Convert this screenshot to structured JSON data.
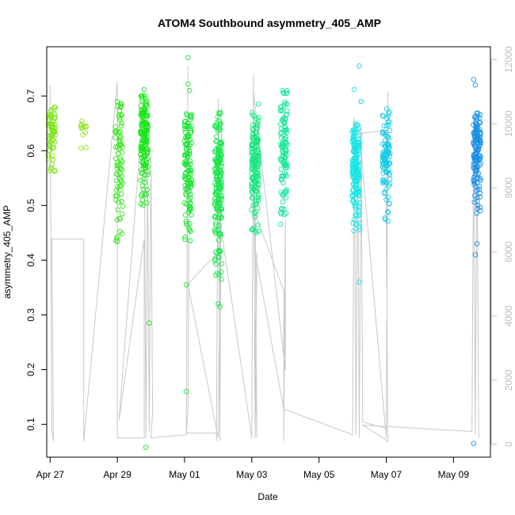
{
  "chart_data": {
    "type": "scatter",
    "title": "ATOM4 Southbound asymmetry_405_AMP",
    "xlabel": "Date",
    "ylabel": "asymmetry_405_AMP",
    "x_ticks": [
      "Apr 27",
      "Apr 29",
      "May 01",
      "May 03",
      "May 05",
      "May 07",
      "May 09"
    ],
    "y_ticks": [
      "0.1",
      "0.2",
      "0.3",
      "0.4",
      "0.5",
      "0.6",
      "0.7"
    ],
    "y_right_ticks": [
      "0",
      "2000",
      "4000",
      "6000",
      "8000",
      "10000",
      "12000"
    ],
    "xlim": [
      -0.1,
      13.1
    ],
    "ylim": [
      0.04,
      0.79
    ],
    "y_right_lim": [
      -400,
      12400
    ],
    "grid": false,
    "clusters": [
      {
        "x": 0.05,
        "y_range": [
          0.56,
          0.68
        ],
        "color": "#7FE61A",
        "n": 70
      },
      {
        "x": 1.0,
        "y_range": [
          0.605,
          0.66
        ],
        "color": "#8FE61A",
        "n": 12
      },
      {
        "x": 2.05,
        "y_range": [
          0.42,
          0.69
        ],
        "color": "#33E61A",
        "n": 80
      },
      {
        "x": 2.8,
        "y_range": [
          0.5,
          0.7
        ],
        "color": "#1AE61A",
        "n": 160
      },
      {
        "x": 4.1,
        "y_range": [
          0.43,
          0.67
        ],
        "color": "#1AE633",
        "n": 120
      },
      {
        "x": 5.0,
        "y_range": [
          0.37,
          0.67
        ],
        "color": "#1AE64C",
        "n": 180
      },
      {
        "x": 6.1,
        "y_range": [
          0.45,
          0.67
        ],
        "color": "#1AE680",
        "n": 160
      },
      {
        "x": 6.95,
        "y_range": [
          0.46,
          0.71
        ],
        "color": "#1AE69A",
        "n": 110
      },
      {
        "x": 9.1,
        "y_range": [
          0.45,
          0.65
        ],
        "color": "#1AE6E6",
        "n": 170
      },
      {
        "x": 10.0,
        "y_range": [
          0.47,
          0.68
        ],
        "color": "#1ACCE6",
        "n": 110
      },
      {
        "x": 12.7,
        "y_range": [
          0.48,
          0.67
        ],
        "color": "#1A8FE6",
        "n": 140
      }
    ],
    "outliers": [
      {
        "x": 2.85,
        "y": 0.058,
        "color": "#1AE61A"
      },
      {
        "x": 2.95,
        "y": 0.285,
        "color": "#1AE61A"
      },
      {
        "x": 2.8,
        "y": 0.712,
        "color": "#1AE61A"
      },
      {
        "x": 4.05,
        "y": 0.16,
        "color": "#1AE633"
      },
      {
        "x": 4.05,
        "y": 0.355,
        "color": "#1AE633"
      },
      {
        "x": 4.1,
        "y": 0.77,
        "color": "#1AE633"
      },
      {
        "x": 4.1,
        "y": 0.722,
        "color": "#1AE633"
      },
      {
        "x": 4.15,
        "y": 0.71,
        "color": "#1AE633"
      },
      {
        "x": 5.0,
        "y": 0.32,
        "color": "#1AE64C"
      },
      {
        "x": 5.05,
        "y": 0.315,
        "color": "#1AE64C"
      },
      {
        "x": 5.1,
        "y": 0.365,
        "color": "#1AE64C"
      },
      {
        "x": 6.2,
        "y": 0.685,
        "color": "#1AE680"
      },
      {
        "x": 6.95,
        "y": 0.705,
        "color": "#1AE69A"
      },
      {
        "x": 9.05,
        "y": 0.712,
        "color": "#1AE6E6"
      },
      {
        "x": 9.2,
        "y": 0.36,
        "color": "#1AE6E6"
      },
      {
        "x": 9.2,
        "y": 0.755,
        "color": "#1ACCE6"
      },
      {
        "x": 9.25,
        "y": 0.69,
        "color": "#1ACCE6"
      },
      {
        "x": 12.6,
        "y": 0.065,
        "color": "#1A8FE6"
      },
      {
        "x": 12.65,
        "y": 0.41,
        "color": "#1A8FE6"
      },
      {
        "x": 12.7,
        "y": 0.43,
        "color": "#1A8FE6"
      },
      {
        "x": 12.6,
        "y": 0.73,
        "color": "#1A8FE6"
      },
      {
        "x": 12.65,
        "y": 0.72,
        "color": "#1A8FE6"
      }
    ],
    "count_line": [
      [
        0.0,
        11200
      ],
      [
        0.05,
        400
      ],
      [
        0.1,
        100
      ],
      [
        0.05,
        6400
      ],
      [
        1.0,
        6400
      ],
      [
        1.0,
        100
      ],
      [
        2.0,
        11300
      ],
      [
        2.0,
        200
      ],
      [
        2.8,
        200
      ],
      [
        2.8,
        6400
      ],
      [
        2.05,
        750
      ],
      [
        2.8,
        11000
      ],
      [
        2.85,
        200
      ],
      [
        2.9,
        8500
      ],
      [
        2.95,
        400
      ],
      [
        3.0,
        9000
      ],
      [
        3.05,
        1000
      ],
      [
        3.0,
        200
      ],
      [
        4.05,
        300
      ],
      [
        4.1,
        11800
      ],
      [
        4.05,
        300
      ],
      [
        4.1,
        10000
      ],
      [
        4.15,
        9000
      ],
      [
        4.1,
        1000
      ],
      [
        4.05,
        350
      ],
      [
        4.95,
        350
      ],
      [
        4.95,
        100
      ],
      [
        5.0,
        10800
      ],
      [
        5.05,
        100
      ],
      [
        5.1,
        10500
      ],
      [
        5.0,
        200
      ],
      [
        4.1,
        5000
      ],
      [
        5.0,
        6000
      ],
      [
        5.05,
        7000
      ],
      [
        6.0,
        200
      ],
      [
        6.05,
        11500
      ],
      [
        6.1,
        200
      ],
      [
        6.15,
        6000
      ],
      [
        6.1,
        3200
      ],
      [
        6.15,
        200
      ],
      [
        6.1,
        7200
      ],
      [
        6.95,
        4800
      ],
      [
        6.95,
        100
      ],
      [
        7.0,
        7000
      ],
      [
        7.0,
        2300
      ],
      [
        6.05,
        11000
      ],
      [
        6.1,
        6000
      ],
      [
        6.95,
        1100
      ],
      [
        9.0,
        300
      ],
      [
        9.05,
        10200
      ],
      [
        9.1,
        300
      ],
      [
        9.15,
        9500
      ],
      [
        9.2,
        200
      ],
      [
        9.25,
        10000
      ],
      [
        9.3,
        700
      ],
      [
        10.0,
        500
      ],
      [
        10.05,
        11000
      ],
      [
        10.0,
        200
      ],
      [
        9.2,
        9800
      ],
      [
        9.25,
        9700
      ],
      [
        10.0,
        9800
      ],
      [
        10.0,
        7000
      ],
      [
        10.05,
        100
      ],
      [
        9.3,
        600
      ],
      [
        12.55,
        400
      ],
      [
        12.6,
        10200
      ],
      [
        12.65,
        300
      ],
      [
        12.7,
        9500
      ],
      [
        12.75,
        200
      ]
    ]
  }
}
